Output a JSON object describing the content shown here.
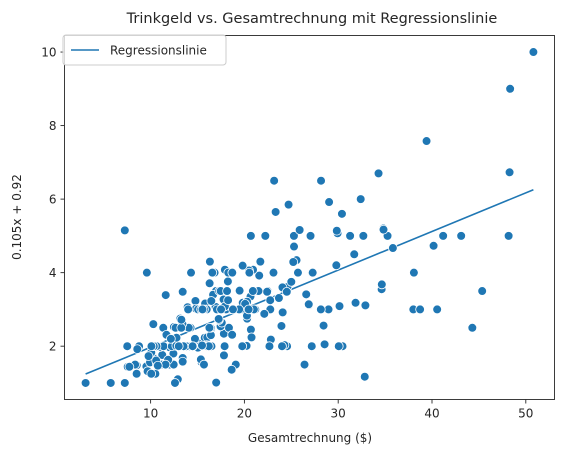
{
  "chart_data": {
    "type": "scatter",
    "title": "Trinkgeld vs. Gesamtrechnung mit Regressionslinie",
    "xlabel": "Gesamtrechnung ($)",
    "ylabel": "0.105x + 0.92",
    "xlim": [
      0.82,
      53.06
    ],
    "ylim": [
      0.55,
      10.45
    ],
    "xticks": [
      10,
      20,
      30,
      40,
      50
    ],
    "yticks": [
      2,
      4,
      6,
      8,
      10
    ],
    "grid": false,
    "legend": {
      "placement": "top-left",
      "entries": [
        "Regressionslinie"
      ]
    },
    "colors": {
      "points": "#1f77b4",
      "line": "#1f77b4",
      "point_edge": "#ffffff"
    },
    "regression_line": {
      "name": "Regressionslinie",
      "slope": 0.105,
      "intercept": 0.92,
      "x_range": [
        3.07,
        50.81
      ]
    },
    "points": [
      [
        16.99,
        1.01
      ],
      [
        10.34,
        1.66
      ],
      [
        21.01,
        3.5
      ],
      [
        23.68,
        3.31
      ],
      [
        24.59,
        3.61
      ],
      [
        25.29,
        4.71
      ],
      [
        8.77,
        2.0
      ],
      [
        26.88,
        3.12
      ],
      [
        15.04,
        1.96
      ],
      [
        14.78,
        3.23
      ],
      [
        10.27,
        1.71
      ],
      [
        35.26,
        5.0
      ],
      [
        15.42,
        1.57
      ],
      [
        18.43,
        3.0
      ],
      [
        14.83,
        3.02
      ],
      [
        21.58,
        3.92
      ],
      [
        10.33,
        1.67
      ],
      [
        16.29,
        3.71
      ],
      [
        16.97,
        3.5
      ],
      [
        20.65,
        3.35
      ],
      [
        17.92,
        4.08
      ],
      [
        20.29,
        2.75
      ],
      [
        15.77,
        2.23
      ],
      [
        39.42,
        7.58
      ],
      [
        19.82,
        3.18
      ],
      [
        17.81,
        2.34
      ],
      [
        13.37,
        2.0
      ],
      [
        12.69,
        2.0
      ],
      [
        21.7,
        4.3
      ],
      [
        19.65,
        3.0
      ],
      [
        9.55,
        1.45
      ],
      [
        18.35,
        2.5
      ],
      [
        15.06,
        3.0
      ],
      [
        20.69,
        2.45
      ],
      [
        17.78,
        3.27
      ],
      [
        24.06,
        3.6
      ],
      [
        16.31,
        2.0
      ],
      [
        16.93,
        3.07
      ],
      [
        18.69,
        2.31
      ],
      [
        31.27,
        5.0
      ],
      [
        16.04,
        2.24
      ],
      [
        17.46,
        2.54
      ],
      [
        13.94,
        3.06
      ],
      [
        9.68,
        1.32
      ],
      [
        30.4,
        5.6
      ],
      [
        18.29,
        3.0
      ],
      [
        22.23,
        5.0
      ],
      [
        32.4,
        6.0
      ],
      [
        28.55,
        2.05
      ],
      [
        18.04,
        3.0
      ],
      [
        12.54,
        2.5
      ],
      [
        10.29,
        2.6
      ],
      [
        34.81,
        5.2
      ],
      [
        9.94,
        1.56
      ],
      [
        25.56,
        4.34
      ],
      [
        19.49,
        3.51
      ],
      [
        38.01,
        3.0
      ],
      [
        26.41,
        1.5
      ],
      [
        11.24,
        1.76
      ],
      [
        48.27,
        6.73
      ],
      [
        20.29,
        3.21
      ],
      [
        13.81,
        2.0
      ],
      [
        11.02,
        1.98
      ],
      [
        18.29,
        3.76
      ],
      [
        17.59,
        2.64
      ],
      [
        20.08,
        3.15
      ],
      [
        16.45,
        2.47
      ],
      [
        3.07,
        1.0
      ],
      [
        20.23,
        2.01
      ],
      [
        15.01,
        2.09
      ],
      [
        12.02,
        1.97
      ],
      [
        17.07,
        3.0
      ],
      [
        26.86,
        3.14
      ],
      [
        25.28,
        5.0
      ],
      [
        14.73,
        2.2
      ],
      [
        10.51,
        1.25
      ],
      [
        17.92,
        3.08
      ],
      [
        27.2,
        4.0
      ],
      [
        22.76,
        3.0
      ],
      [
        17.29,
        2.71
      ],
      [
        19.44,
        3.0
      ],
      [
        16.66,
        3.4
      ],
      [
        10.07,
        1.83
      ],
      [
        32.68,
        5.0
      ],
      [
        15.98,
        2.03
      ],
      [
        34.83,
        5.17
      ],
      [
        13.03,
        2.0
      ],
      [
        18.28,
        4.0
      ],
      [
        24.71,
        5.85
      ],
      [
        21.16,
        3.0
      ],
      [
        28.97,
        3.0
      ],
      [
        22.49,
        3.5
      ],
      [
        5.75,
        1.0
      ],
      [
        16.32,
        4.3
      ],
      [
        22.75,
        3.25
      ],
      [
        40.17,
        4.73
      ],
      [
        27.28,
        4.0
      ],
      [
        12.03,
        1.5
      ],
      [
        21.01,
        3.0
      ],
      [
        12.46,
        1.5
      ],
      [
        11.35,
        2.5
      ],
      [
        15.38,
        3.0
      ],
      [
        44.3,
        2.5
      ],
      [
        22.42,
        3.48
      ],
      [
        20.92,
        4.08
      ],
      [
        15.36,
        1.64
      ],
      [
        20.49,
        4.06
      ],
      [
        25.21,
        4.29
      ],
      [
        18.24,
        3.76
      ],
      [
        14.31,
        4.0
      ],
      [
        14.0,
        3.0
      ],
      [
        7.25,
        1.0
      ],
      [
        38.07,
        4.0
      ],
      [
        23.95,
        2.55
      ],
      [
        25.71,
        4.0
      ],
      [
        17.31,
        3.5
      ],
      [
        29.93,
        5.07
      ],
      [
        10.65,
        1.5
      ],
      [
        12.43,
        1.8
      ],
      [
        24.08,
        2.92
      ],
      [
        11.69,
        2.31
      ],
      [
        13.42,
        1.68
      ],
      [
        14.26,
        2.5
      ],
      [
        15.95,
        2.0
      ],
      [
        12.48,
        2.52
      ],
      [
        29.8,
        4.2
      ],
      [
        8.52,
        1.48
      ],
      [
        14.52,
        2.0
      ],
      [
        11.38,
        2.0
      ],
      [
        22.82,
        2.18
      ],
      [
        19.08,
        1.5
      ],
      [
        20.27,
        2.83
      ],
      [
        11.17,
        1.5
      ],
      [
        12.26,
        2.0
      ],
      [
        18.26,
        3.25
      ],
      [
        8.51,
        1.25
      ],
      [
        10.33,
        2.0
      ],
      [
        14.15,
        2.0
      ],
      [
        16.0,
        2.0
      ],
      [
        13.16,
        2.75
      ],
      [
        17.47,
        3.5
      ],
      [
        34.3,
        6.7
      ],
      [
        41.19,
        5.0
      ],
      [
        27.05,
        5.0
      ],
      [
        16.43,
        2.3
      ],
      [
        8.35,
        1.5
      ],
      [
        18.64,
        1.36
      ],
      [
        11.87,
        1.63
      ],
      [
        9.78,
        1.73
      ],
      [
        7.51,
        2.0
      ],
      [
        14.07,
        2.5
      ],
      [
        13.13,
        2.0
      ],
      [
        17.26,
        2.74
      ],
      [
        24.55,
        2.0
      ],
      [
        19.77,
        2.0
      ],
      [
        29.85,
        5.14
      ],
      [
        48.17,
        5.0
      ],
      [
        25.0,
        3.75
      ],
      [
        13.39,
        2.61
      ],
      [
        16.49,
        2.0
      ],
      [
        21.5,
        3.5
      ],
      [
        12.66,
        2.5
      ],
      [
        16.21,
        2.0
      ],
      [
        13.81,
        2.0
      ],
      [
        17.51,
        3.0
      ],
      [
        24.52,
        3.48
      ],
      [
        20.76,
        2.24
      ],
      [
        31.71,
        4.5
      ],
      [
        10.59,
        1.61
      ],
      [
        10.63,
        2.0
      ],
      [
        50.81,
        10.0
      ],
      [
        15.81,
        3.16
      ],
      [
        7.25,
        5.15
      ],
      [
        31.85,
        3.18
      ],
      [
        16.82,
        4.0
      ],
      [
        32.9,
        3.11
      ],
      [
        17.89,
        2.0
      ],
      [
        14.48,
        2.0
      ],
      [
        9.6,
        4.0
      ],
      [
        34.63,
        3.55
      ],
      [
        34.65,
        3.68
      ],
      [
        23.33,
        5.65
      ],
      [
        45.35,
        3.5
      ],
      [
        23.17,
        6.5
      ],
      [
        40.55,
        3.0
      ],
      [
        20.69,
        5.0
      ],
      [
        20.9,
        3.5
      ],
      [
        30.46,
        2.0
      ],
      [
        18.15,
        3.5
      ],
      [
        23.1,
        4.0
      ],
      [
        15.69,
        1.5
      ],
      [
        19.81,
        4.19
      ],
      [
        28.44,
        2.56
      ],
      [
        15.48,
        2.02
      ],
      [
        16.58,
        4.0
      ],
      [
        7.56,
        1.44
      ],
      [
        10.34,
        2.0
      ],
      [
        43.11,
        5.0
      ],
      [
        13.0,
        2.0
      ],
      [
        13.51,
        2.0
      ],
      [
        18.71,
        4.0
      ],
      [
        12.74,
        2.01
      ],
      [
        13.0,
        2.0
      ],
      [
        16.4,
        2.5
      ],
      [
        20.53,
        4.0
      ],
      [
        16.47,
        3.23
      ],
      [
        26.59,
        3.41
      ],
      [
        38.73,
        3.0
      ],
      [
        24.27,
        2.03
      ],
      [
        12.76,
        2.23
      ],
      [
        30.06,
        2.0
      ],
      [
        25.89,
        5.16
      ],
      [
        48.33,
        9.0
      ],
      [
        13.27,
        2.5
      ],
      [
        28.17,
        6.5
      ],
      [
        12.9,
        1.1
      ],
      [
        28.15,
        3.0
      ],
      [
        11.59,
        1.5
      ],
      [
        7.74,
        1.44
      ],
      [
        30.14,
        3.09
      ],
      [
        12.16,
        2.2
      ],
      [
        13.42,
        3.48
      ],
      [
        8.58,
        1.92
      ],
      [
        15.98,
        3.0
      ],
      [
        13.42,
        1.58
      ],
      [
        16.27,
        2.5
      ],
      [
        10.09,
        2.0
      ],
      [
        20.45,
        3.0
      ],
      [
        13.28,
        2.72
      ],
      [
        22.12,
        2.88
      ],
      [
        24.01,
        2.0
      ],
      [
        15.69,
        3.0
      ],
      [
        11.61,
        3.39
      ],
      [
        10.77,
        1.47
      ],
      [
        15.53,
        3.0
      ],
      [
        10.07,
        1.25
      ],
      [
        12.6,
        1.0
      ],
      [
        32.83,
        1.17
      ],
      [
        35.83,
        4.67
      ],
      [
        29.03,
        5.92
      ],
      [
        27.18,
        2.0
      ],
      [
        22.67,
        2.0
      ],
      [
        17.82,
        1.75
      ],
      [
        18.78,
        3.0
      ]
    ]
  }
}
